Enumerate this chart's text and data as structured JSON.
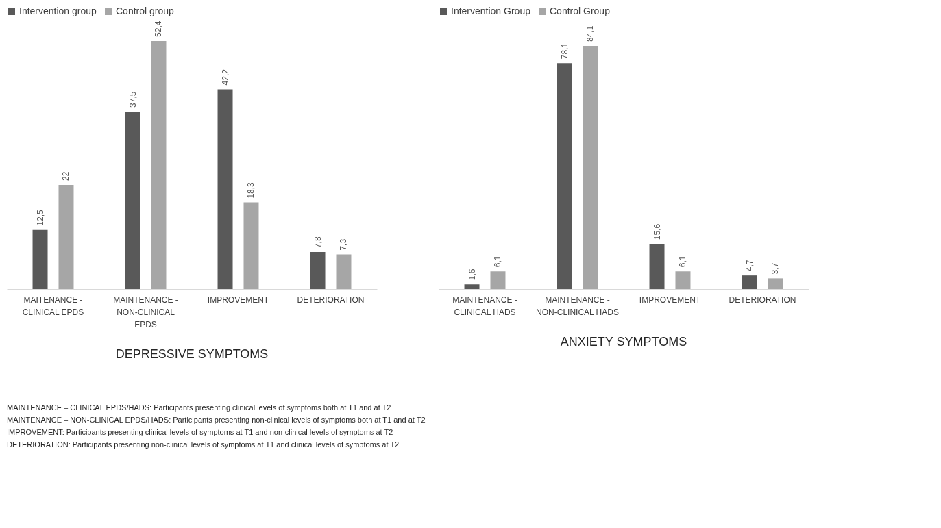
{
  "chart_data": [
    {
      "type": "bar",
      "title": "DEPRESSIVE SYMPTOMS",
      "categories": [
        "MAITENANCE -\nCLINICAL EPDS",
        "MAINTENANCE -\nNON-CLINICAL\nEPDS",
        "IMPROVEMENT",
        "DETERIORATION"
      ],
      "series": [
        {
          "name": "Intervention group",
          "color": "#595959",
          "values": [
            12.5,
            37.5,
            42.2,
            7.8
          ],
          "value_labels": [
            "12,5",
            "37,5",
            "42,2",
            "7,8"
          ]
        },
        {
          "name": "Control group",
          "color": "#a6a6a6",
          "values": [
            22,
            52.4,
            18.3,
            7.3
          ],
          "value_labels": [
            "22",
            "52,4",
            "18,3",
            "7,3"
          ]
        }
      ],
      "legend": "top left",
      "grid": false,
      "annotations": [
        "MAINTENANCE – CLINICAL EPDS/HADS: Participants presenting clinical levels of symptoms both at T1 and at T2",
        "MAINTENANCE – NON-CLINICAL EPDS/HADS: Participants presenting non-clinical levels of symptoms both at T1 and at T2",
        "IMPROVEMENT: Participants presenting clinical levels of symptoms at T1 and non-clinical levels of symptoms at T2",
        "DETERIORATION: Participants presenting non-clinical levels of symptoms at T1 and clinical levels of symptoms at T2"
      ]
    },
    {
      "type": "bar",
      "title": "ANXIETY  SYMPTOMS",
      "categories": [
        "MAINTENANCE -\nCLINICAL HADS",
        "MAINTENANCE -\nNON-CLINICAL HADS",
        "IMPROVEMENT",
        "DETERIORATION"
      ],
      "series": [
        {
          "name": "Intervention Group",
          "color": "#595959",
          "values": [
            1.6,
            78.1,
            15.6,
            4.7
          ],
          "value_labels": [
            "1,6",
            "78,1",
            "15,6",
            "4,7"
          ]
        },
        {
          "name": "Control Group",
          "color": "#a6a6a6",
          "values": [
            6.1,
            84.1,
            6.1,
            3.7
          ],
          "value_labels": [
            "6,1",
            "84,1",
            "6,1",
            "3,7"
          ]
        }
      ],
      "legend": "top left",
      "grid": false
    }
  ]
}
